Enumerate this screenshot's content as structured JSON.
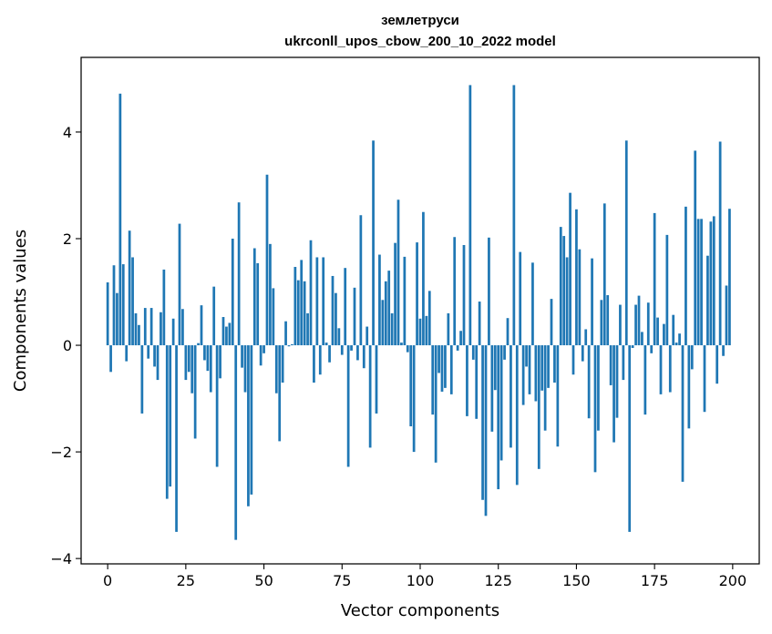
{
  "chart_data": {
    "type": "bar",
    "title": [
      "землетруси",
      "ukrconll_upos_cbow_200_10_2022 model"
    ],
    "xlabel": "Vector components",
    "ylabel": "Components values",
    "xlim": [
      -8.5,
      208.5
    ],
    "ylim": [
      -4.1,
      5.4
    ],
    "xticks": [
      0,
      25,
      50,
      75,
      100,
      125,
      150,
      175,
      200
    ],
    "yticks": [
      -4,
      -2,
      0,
      2,
      4
    ],
    "xtick_labels": [
      "0",
      "25",
      "50",
      "75",
      "100",
      "125",
      "150",
      "175",
      "200"
    ],
    "ytick_labels": [
      "−4",
      "−2",
      "0",
      "2",
      "4"
    ],
    "grid": false,
    "color": "#1f77b4",
    "x": [
      0,
      1,
      2,
      3,
      4,
      5,
      6,
      7,
      8,
      9,
      10,
      11,
      12,
      13,
      14,
      15,
      16,
      17,
      18,
      19,
      20,
      21,
      22,
      23,
      24,
      25,
      26,
      27,
      28,
      29,
      30,
      31,
      32,
      33,
      34,
      35,
      36,
      37,
      38,
      39,
      40,
      41,
      42,
      43,
      44,
      45,
      46,
      47,
      48,
      49,
      50,
      51,
      52,
      53,
      54,
      55,
      56,
      57,
      58,
      59,
      60,
      61,
      62,
      63,
      64,
      65,
      66,
      67,
      68,
      69,
      70,
      71,
      72,
      73,
      74,
      75,
      76,
      77,
      78,
      79,
      80,
      81,
      82,
      83,
      84,
      85,
      86,
      87,
      88,
      89,
      90,
      91,
      92,
      93,
      94,
      95,
      96,
      97,
      98,
      99,
      100,
      101,
      102,
      103,
      104,
      105,
      106,
      107,
      108,
      109,
      110,
      111,
      112,
      113,
      114,
      115,
      116,
      117,
      118,
      119,
      120,
      121,
      122,
      123,
      124,
      125,
      126,
      127,
      128,
      129,
      130,
      131,
      132,
      133,
      134,
      135,
      136,
      137,
      138,
      139,
      140,
      141,
      142,
      143,
      144,
      145,
      146,
      147,
      148,
      149,
      150,
      151,
      152,
      153,
      154,
      155,
      156,
      157,
      158,
      159,
      160,
      161,
      162,
      163,
      164,
      165,
      166,
      167,
      168,
      169,
      170,
      171,
      172,
      173,
      174,
      175,
      176,
      177,
      178,
      179,
      180,
      181,
      182,
      183,
      184,
      185,
      186,
      187,
      188,
      189,
      190,
      191,
      192,
      193,
      194,
      195,
      196,
      197,
      198,
      199
    ],
    "values": [
      1.18,
      -0.5,
      1.5,
      0.98,
      4.72,
      1.52,
      -0.3,
      2.15,
      1.65,
      0.6,
      0.38,
      -1.28,
      0.7,
      -0.25,
      0.7,
      -0.4,
      -0.65,
      0.62,
      1.42,
      -2.88,
      -2.65,
      0.5,
      -3.5,
      2.28,
      0.68,
      -0.65,
      -0.5,
      -0.9,
      -1.75,
      0.04,
      0.75,
      -0.28,
      -0.48,
      -0.88,
      1.1,
      -2.28,
      -0.62,
      0.53,
      0.35,
      0.42,
      2.0,
      -3.65,
      2.68,
      -0.42,
      -0.88,
      -3.02,
      -2.8,
      1.82,
      1.54,
      -0.38,
      -0.15,
      3.2,
      1.9,
      1.07,
      -0.9,
      -1.8,
      -0.7,
      0.45,
      -0.02,
      0.02,
      1.47,
      1.22,
      1.6,
      1.2,
      0.6,
      1.97,
      -0.7,
      1.65,
      -0.55,
      1.65,
      0.05,
      -0.32,
      1.3,
      0.98,
      0.32,
      -0.18,
      1.45,
      -2.28,
      -0.1,
      1.08,
      -0.28,
      2.44,
      -0.43,
      0.35,
      -1.92,
      3.84,
      -1.28,
      1.7,
      0.85,
      1.2,
      1.4,
      0.6,
      1.92,
      2.73,
      0.05,
      1.66,
      -0.13,
      -1.52,
      -2.0,
      1.93,
      0.5,
      2.5,
      0.55,
      1.02,
      -1.3,
      -2.2,
      -0.52,
      -0.87,
      -0.8,
      0.6,
      -0.92,
      2.03,
      -0.1,
      0.27,
      1.88,
      -1.33,
      4.88,
      -0.27,
      -1.38,
      0.82,
      -2.9,
      -3.2,
      2.02,
      -1.62,
      -0.84,
      -2.7,
      -2.16,
      -0.27,
      0.51,
      -1.92,
      4.88,
      -2.62,
      1.75,
      -1.12,
      -0.4,
      -0.92,
      1.55,
      -1.05,
      -2.32,
      -0.85,
      -1.6,
      -0.8,
      0.87,
      -0.7,
      -1.9,
      2.22,
      2.05,
      1.65,
      2.86,
      -0.55,
      2.55,
      1.8,
      -0.3,
      0.3,
      -1.37,
      1.63,
      -2.38,
      -1.6,
      0.85,
      2.66,
      0.94,
      -0.75,
      -1.82,
      -1.36,
      0.76,
      -0.65,
      3.84,
      -3.5,
      -0.05,
      0.76,
      0.93,
      0.25,
      -1.3,
      0.8,
      -0.15,
      2.48,
      0.52,
      -0.92,
      0.4,
      2.07,
      -0.88,
      0.57,
      0.05,
      0.22,
      -2.56,
      2.6,
      -1.56,
      -0.45,
      3.65,
      2.37,
      2.37,
      -1.25,
      1.68,
      2.32,
      2.42,
      -0.72,
      3.82,
      -0.2,
      1.12,
      2.56
    ]
  }
}
